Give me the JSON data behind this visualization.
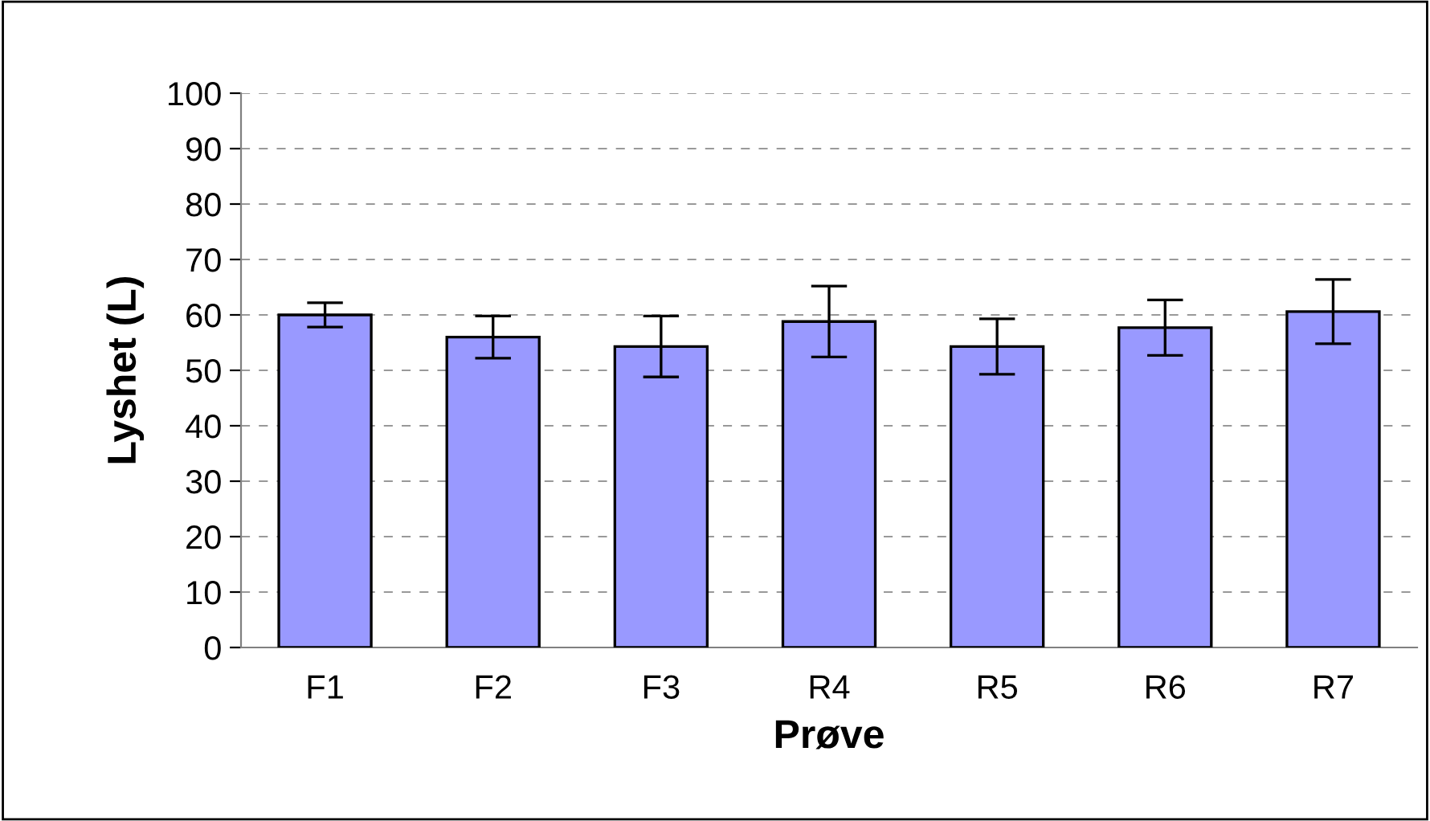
{
  "chart_data": {
    "type": "bar",
    "xlabel": "Prøve",
    "ylabel": "Lyshet (L)",
    "categories": [
      "F1",
      "F2",
      "F3",
      "R4",
      "R5",
      "R6",
      "R7"
    ],
    "values": [
      60,
      56,
      54.3,
      58.8,
      54.3,
      57.7,
      60.6
    ],
    "errors": [
      2.2,
      3.8,
      5.5,
      6.4,
      5,
      5,
      5.8
    ],
    "color": "#9999ff",
    "ylim": [
      0,
      100
    ],
    "yticks": [
      0,
      10,
      20,
      30,
      40,
      50,
      60,
      70,
      80,
      90,
      100
    ],
    "grid": "y",
    "legend": false
  }
}
